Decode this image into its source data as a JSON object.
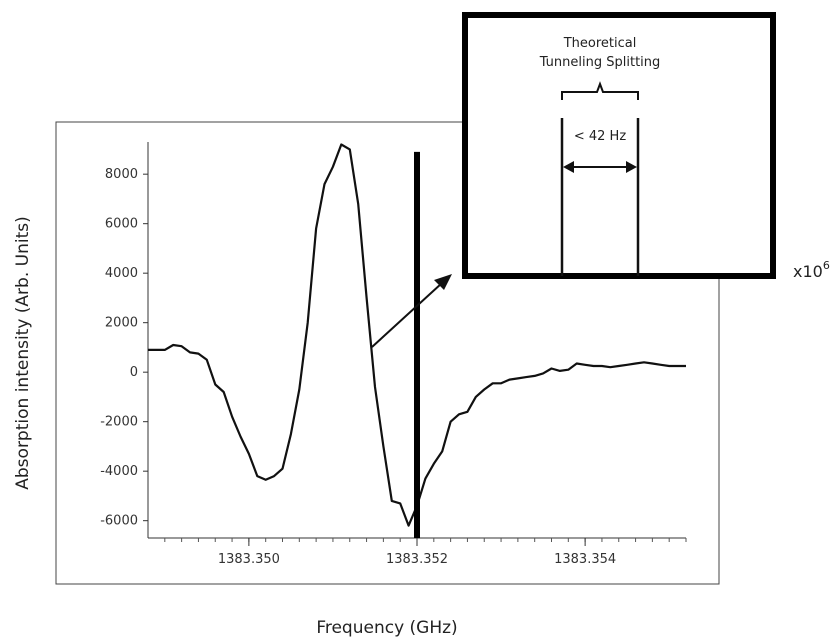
{
  "chart_data": {
    "type": "line",
    "title": "",
    "xlabel": "Frequency (GHz)",
    "ylabel": "Absorption intensity (Arb. Units)",
    "multiplier": "x10",
    "multiplier_exp": "6",
    "xlim": [
      1383.3488,
      1383.3552
    ],
    "ylim": [
      -6700,
      9300
    ],
    "x_ticks": [
      1383.35,
      1383.352,
      1383.354
    ],
    "x_tick_labels": [
      "1383.350",
      "1383.352",
      "1383.354"
    ],
    "y_ticks": [
      8000,
      6000,
      4000,
      2000,
      0,
      -2000,
      -4000,
      -6000
    ],
    "y_tick_labels": [
      "8000",
      "6000",
      "4000",
      "2000",
      "0",
      "-2000",
      "-4000",
      "-6000"
    ],
    "grid": false,
    "series": [
      {
        "x": [
          1383.3488,
          1383.349,
          1383.3491,
          1383.3492,
          1383.3493,
          1383.3494,
          1383.3495,
          1383.3496,
          1383.3497,
          1383.3498,
          1383.3499,
          1383.35,
          1383.3501,
          1383.3502,
          1383.3503,
          1383.3504,
          1383.3505,
          1383.3506,
          1383.3507,
          1383.3508,
          1383.3509,
          1383.351,
          1383.3511,
          1383.3512,
          1383.3513,
          1383.3514,
          1383.3515,
          1383.3516,
          1383.3517,
          1383.3518,
          1383.3519,
          1383.352,
          1383.3521,
          1383.3522,
          1383.3523,
          1383.3524,
          1383.3525,
          1383.3526,
          1383.3527,
          1383.3528,
          1383.3529,
          1383.353,
          1383.3531,
          1383.3532,
          1383.3533,
          1383.3534,
          1383.3535,
          1383.3536,
          1383.3537,
          1383.3538,
          1383.3539,
          1383.354,
          1383.3541,
          1383.3542,
          1383.3543,
          1383.3544,
          1383.3545,
          1383.3546,
          1383.3547,
          1383.3548,
          1383.3549,
          1383.355,
          1383.3551,
          1383.3552
        ],
        "values": [
          900,
          900,
          1100,
          1050,
          800,
          750,
          500,
          -500,
          -800,
          -1800,
          -2600,
          -3300,
          -4200,
          -4350,
          -4200,
          -3900,
          -2500,
          -700,
          2000,
          5800,
          7600,
          8300,
          9200,
          9000,
          6800,
          3000,
          -600,
          -3000,
          -5200,
          -5300,
          -6200,
          -5400,
          -4300,
          -3700,
          -3200,
          -2000,
          -1700,
          -1600,
          -1000,
          -700,
          -450,
          -450,
          -300,
          -250,
          -200,
          -150,
          -50,
          150,
          50,
          100,
          350,
          300,
          250,
          250,
          200,
          250,
          300,
          350,
          400,
          350,
          300,
          250,
          250,
          250
        ]
      }
    ],
    "annotations": {
      "center_x": 1383.352,
      "inset_title_line1": "Theoretical",
      "inset_title_line2": "Tunneling Splitting",
      "inset_label": "< 42 Hz"
    }
  }
}
